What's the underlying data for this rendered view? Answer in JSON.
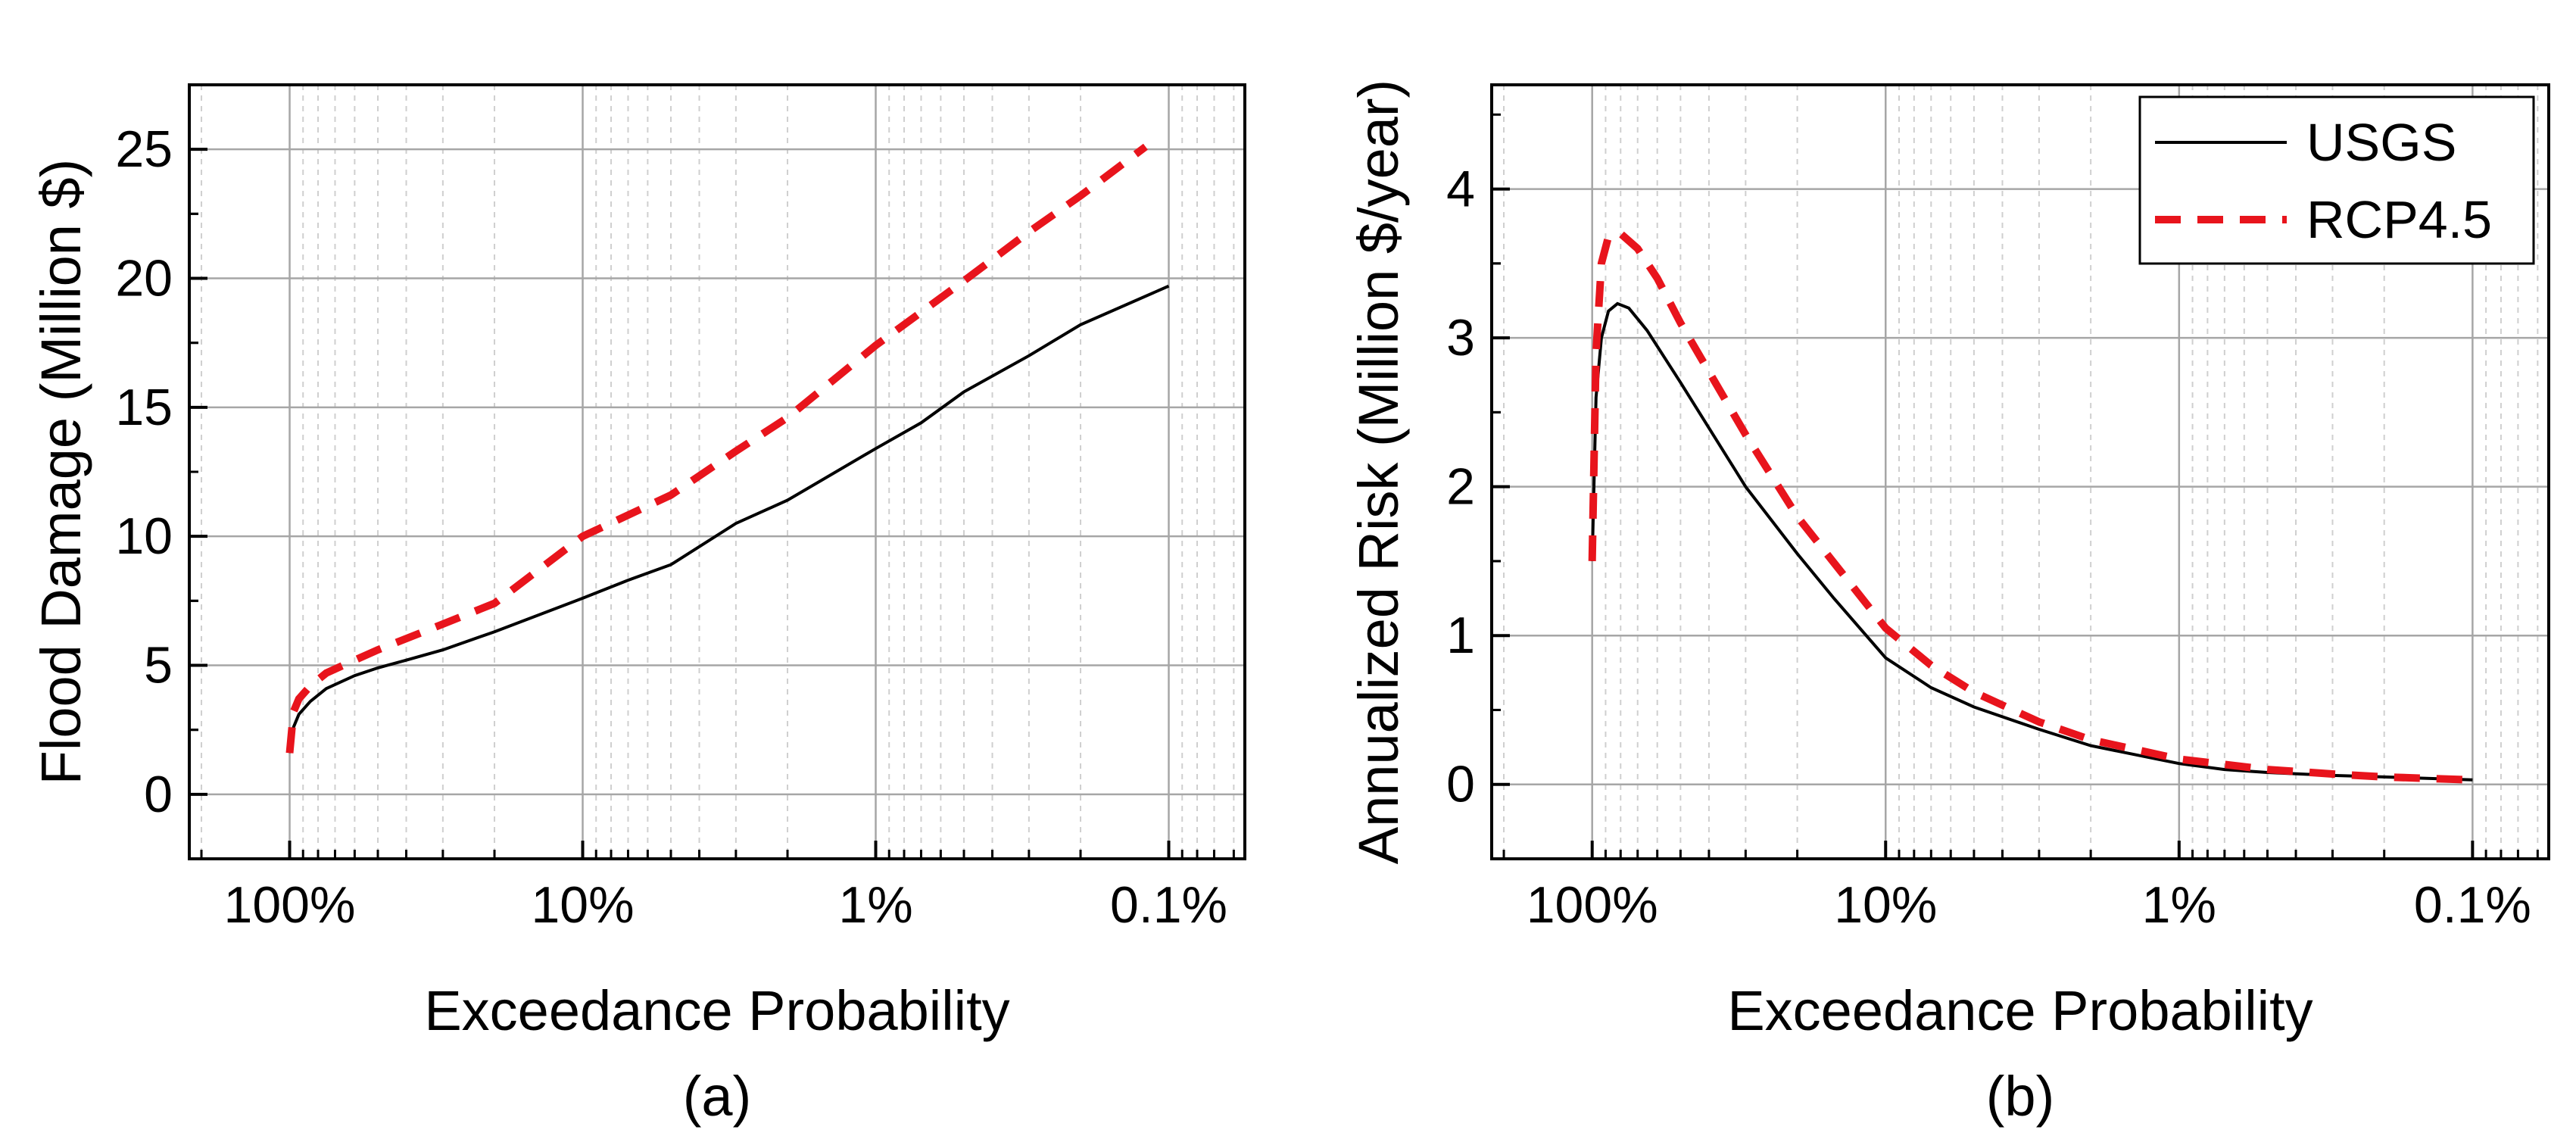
{
  "chart_data": [
    {
      "type": "line",
      "panel": "a",
      "caption": "(a)",
      "xlabel": "Exceedance Probability",
      "ylabel": "Flood Damage (Million $)",
      "x_scale": "log-reversed",
      "xlim": [
        2.2,
        0.00055
      ],
      "ylim": [
        -2.5,
        27.5
      ],
      "x_ticks": [
        1,
        0.1,
        0.01,
        0.001
      ],
      "x_tick_labels": [
        "100%",
        "10%",
        "1%",
        "0.1%"
      ],
      "y_ticks": [
        0,
        5,
        10,
        15,
        20,
        25
      ],
      "y_tick_labels": [
        "0",
        "5",
        "10",
        "15",
        "20",
        "25"
      ],
      "grid": true,
      "series": [
        {
          "name": "USGS",
          "style": "solid",
          "color": "#000000",
          "points": [
            [
              1.0,
              1.6
            ],
            [
              0.97,
              2.6
            ],
            [
              0.93,
              3.1
            ],
            [
              0.85,
              3.6
            ],
            [
              0.75,
              4.1
            ],
            [
              0.6,
              4.6
            ],
            [
              0.5,
              4.9
            ],
            [
              0.4,
              5.2
            ],
            [
              0.3,
              5.6
            ],
            [
              0.2,
              6.3
            ],
            [
              0.1,
              7.6
            ],
            [
              0.07,
              8.3
            ],
            [
              0.05,
              8.9
            ],
            [
              0.03,
              10.5
            ],
            [
              0.02,
              11.4
            ],
            [
              0.01,
              13.4
            ],
            [
              0.007,
              14.4
            ],
            [
              0.005,
              15.6
            ],
            [
              0.003,
              17.0
            ],
            [
              0.002,
              18.2
            ],
            [
              0.001,
              19.7
            ]
          ]
        },
        {
          "name": "RCP4.5",
          "style": "dashed",
          "color": "#e8141c",
          "points": [
            [
              1.0,
              1.6
            ],
            [
              0.97,
              3.2
            ],
            [
              0.93,
              3.7
            ],
            [
              0.85,
              4.2
            ],
            [
              0.75,
              4.7
            ],
            [
              0.6,
              5.2
            ],
            [
              0.5,
              5.6
            ],
            [
              0.3,
              6.6
            ],
            [
              0.2,
              7.4
            ],
            [
              0.1,
              10.0
            ],
            [
              0.05,
              11.6
            ],
            [
              0.03,
              13.3
            ],
            [
              0.02,
              14.6
            ],
            [
              0.01,
              17.4
            ],
            [
              0.005,
              19.9
            ],
            [
              0.003,
              21.8
            ],
            [
              0.002,
              23.2
            ],
            [
              0.0012,
              25.1
            ]
          ]
        }
      ]
    },
    {
      "type": "line",
      "panel": "b",
      "caption": "(b)",
      "xlabel": "Exceedance Probability",
      "ylabel": "Annualized Risk (Million $/year)",
      "x_scale": "log-reversed",
      "xlim": [
        2.2,
        0.00055
      ],
      "ylim": [
        -0.5,
        4.7
      ],
      "x_ticks": [
        1,
        0.1,
        0.01,
        0.001
      ],
      "x_tick_labels": [
        "100%",
        "10%",
        "1%",
        "0.1%"
      ],
      "y_ticks": [
        0,
        1,
        2,
        3,
        4
      ],
      "y_tick_labels": [
        "0",
        "1",
        "2",
        "3",
        "4"
      ],
      "grid": true,
      "legend": {
        "position": "top-right",
        "entries": [
          "USGS",
          "RCP4.5"
        ]
      },
      "series": [
        {
          "name": "USGS",
          "style": "solid",
          "color": "#000000",
          "points": [
            [
              1.0,
              1.5
            ],
            [
              0.97,
              2.6
            ],
            [
              0.93,
              3.0
            ],
            [
              0.88,
              3.18
            ],
            [
              0.82,
              3.23
            ],
            [
              0.75,
              3.2
            ],
            [
              0.65,
              3.05
            ],
            [
              0.5,
              2.7
            ],
            [
              0.3,
              2.0
            ],
            [
              0.2,
              1.55
            ],
            [
              0.15,
              1.25
            ],
            [
              0.1,
              0.85
            ],
            [
              0.07,
              0.65
            ],
            [
              0.05,
              0.52
            ],
            [
              0.03,
              0.37
            ],
            [
              0.02,
              0.26
            ],
            [
              0.01,
              0.14
            ],
            [
              0.007,
              0.1
            ],
            [
              0.005,
              0.08
            ],
            [
              0.003,
              0.06
            ],
            [
              0.002,
              0.05
            ],
            [
              0.001,
              0.03
            ]
          ]
        },
        {
          "name": "RCP4.5",
          "style": "dashed",
          "color": "#e8141c",
          "points": [
            [
              1.0,
              1.5
            ],
            [
              0.97,
              2.9
            ],
            [
              0.93,
              3.5
            ],
            [
              0.88,
              3.68
            ],
            [
              0.8,
              3.7
            ],
            [
              0.7,
              3.6
            ],
            [
              0.6,
              3.4
            ],
            [
              0.5,
              3.1
            ],
            [
              0.3,
              2.35
            ],
            [
              0.2,
              1.8
            ],
            [
              0.1,
              1.05
            ],
            [
              0.07,
              0.8
            ],
            [
              0.05,
              0.62
            ],
            [
              0.03,
              0.42
            ],
            [
              0.02,
              0.3
            ],
            [
              0.01,
              0.17
            ],
            [
              0.005,
              0.1
            ],
            [
              0.003,
              0.07
            ],
            [
              0.002,
              0.05
            ],
            [
              0.001,
              0.03
            ]
          ]
        }
      ]
    }
  ]
}
